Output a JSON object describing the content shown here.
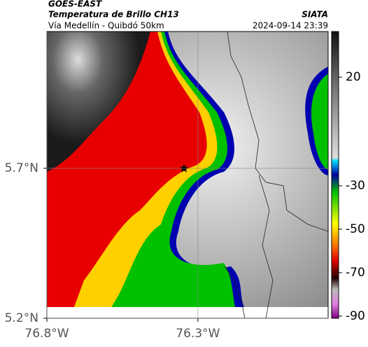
{
  "header": {
    "title": "GOES-EAST",
    "subtitle": "Temperatura de Brillo CH13",
    "location": "Vía Medellín - Quibdó 50km",
    "source": "SIATA",
    "datetime": "2024-09-14 23:39"
  },
  "map": {
    "xlim": [
      -76.8,
      -75.869
    ],
    "ylim": [
      5.2,
      6.156
    ],
    "xticks": [
      {
        "value": -76.8,
        "label": "76.8°W"
      },
      {
        "value": -76.3,
        "label": "76.3°W"
      }
    ],
    "yticks": [
      {
        "value": 5.7,
        "label": "5.7°N"
      },
      {
        "value": 5.2,
        "label": "5.2°N"
      }
    ],
    "colorbar": {
      "lim": [
        -91,
        41
      ],
      "ticks": [
        20,
        -30,
        -50,
        -70,
        -90
      ]
    }
  }
}
